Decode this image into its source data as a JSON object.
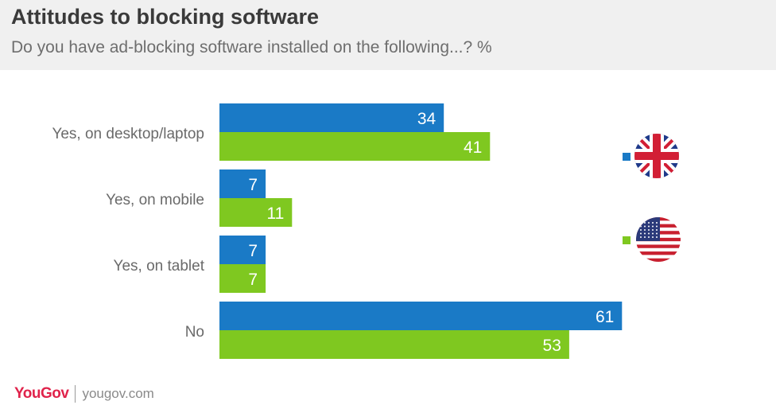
{
  "header": {
    "title": "Attitudes to blocking software",
    "subtitle": "Do you have ad-blocking software installed on the following...? %"
  },
  "footer": {
    "logo": "YouGov",
    "url": "yougov.com"
  },
  "legend": [
    {
      "icon": "uk-flag-icon",
      "color": "#1a7ac6"
    },
    {
      "icon": "us-flag-icon",
      "color": "#7fc820"
    }
  ],
  "chart_data": {
    "type": "bar",
    "orientation": "horizontal",
    "categories": [
      "Yes, on desktop/laptop",
      "Yes, on mobile",
      "Yes, on tablet",
      "No"
    ],
    "series": [
      {
        "color": "#1a7ac6",
        "values": [
          34,
          7,
          7,
          61
        ]
      },
      {
        "color": "#7fc820",
        "values": [
          41,
          11,
          7,
          53
        ]
      }
    ],
    "xlim": [
      0,
      100
    ],
    "grid": false,
    "legend_position": "right"
  }
}
